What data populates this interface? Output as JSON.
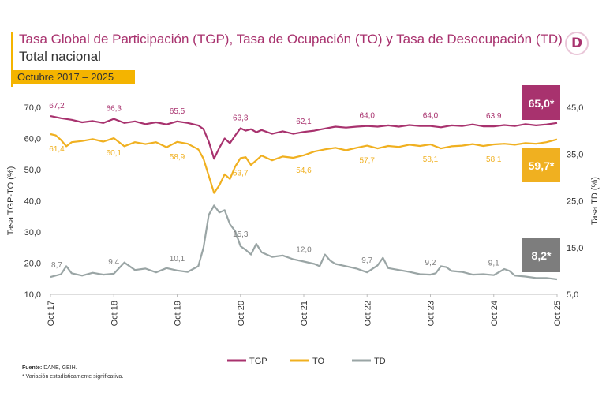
{
  "header": {
    "title_part1": "Tasa Global de Participación (TGP),",
    "title_part2": "Tasa de Ocupación (TO) y Tasa de Desocupación (TD)",
    "subtitle": "Total nacional",
    "period": "Octubre 2017 – 2025",
    "logo_letter": "D"
  },
  "colors": {
    "tgp": "#a8326e",
    "to": "#f0b020",
    "td": "#9aa5a5",
    "td_label": "#7d7d7d"
  },
  "chart_data": {
    "type": "line",
    "x_tick_labels": [
      "Oct 17",
      "Oct 18",
      "Oct 19",
      "Oct 20",
      "Oct 21",
      "Oct 22",
      "Oct 23",
      "Oct 24",
      "Oct 25"
    ],
    "x_tick_months": [
      0,
      12,
      24,
      36,
      48,
      60,
      72,
      84,
      96
    ],
    "ylabel_left": "Tasa TGP-TO (%)",
    "ylabel_right": "Tasa TD (%)",
    "ylim_left": [
      10,
      70
    ],
    "ylim_right": [
      5,
      45
    ],
    "yticks_left": [
      "10,0",
      "20,0",
      "30,0",
      "40,0",
      "50,0",
      "60,0",
      "70,0"
    ],
    "yticks_right": [
      "5,0",
      "15,0",
      "25,0",
      "35,0",
      "45,0"
    ],
    "series": [
      {
        "key": "tgp",
        "name": "TGP",
        "axis": "left",
        "points": [
          [
            0,
            67.2
          ],
          [
            2,
            66.5
          ],
          [
            4,
            66.0
          ],
          [
            6,
            65.2
          ],
          [
            8,
            65.6
          ],
          [
            10,
            65.0
          ],
          [
            12,
            66.3
          ],
          [
            14,
            65.0
          ],
          [
            16,
            65.5
          ],
          [
            18,
            64.6
          ],
          [
            20,
            65.2
          ],
          [
            22,
            64.5
          ],
          [
            24,
            65.5
          ],
          [
            26,
            65.0
          ],
          [
            28,
            64.2
          ],
          [
            29,
            63.0
          ],
          [
            30,
            59.0
          ],
          [
            31,
            53.5
          ],
          [
            32,
            57.0
          ],
          [
            33,
            60.0
          ],
          [
            34,
            58.5
          ],
          [
            35,
            61.0
          ],
          [
            36,
            63.3
          ],
          [
            37,
            62.5
          ],
          [
            38,
            63.0
          ],
          [
            39,
            62.0
          ],
          [
            40,
            62.7
          ],
          [
            42,
            61.5
          ],
          [
            44,
            62.3
          ],
          [
            46,
            61.5
          ],
          [
            48,
            62.1
          ],
          [
            50,
            62.5
          ],
          [
            52,
            63.2
          ],
          [
            54,
            63.8
          ],
          [
            56,
            63.5
          ],
          [
            58,
            63.8
          ],
          [
            60,
            64.0
          ],
          [
            62,
            63.8
          ],
          [
            64,
            64.2
          ],
          [
            66,
            63.8
          ],
          [
            68,
            64.3
          ],
          [
            70,
            64.0
          ],
          [
            72,
            64.0
          ],
          [
            74,
            63.6
          ],
          [
            76,
            64.2
          ],
          [
            78,
            64.0
          ],
          [
            80,
            64.5
          ],
          [
            82,
            63.9
          ],
          [
            84,
            63.9
          ],
          [
            86,
            64.3
          ],
          [
            88,
            64.0
          ],
          [
            90,
            64.6
          ],
          [
            92,
            64.2
          ],
          [
            94,
            64.5
          ],
          [
            96,
            65.0
          ]
        ]
      },
      {
        "key": "to",
        "name": "TO",
        "axis": "left",
        "points": [
          [
            0,
            61.4
          ],
          [
            1,
            61.0
          ],
          [
            2,
            59.5
          ],
          [
            3,
            57.5
          ],
          [
            4,
            58.8
          ],
          [
            6,
            59.2
          ],
          [
            8,
            59.8
          ],
          [
            10,
            59.0
          ],
          [
            12,
            60.1
          ],
          [
            14,
            57.5
          ],
          [
            16,
            58.8
          ],
          [
            18,
            58.2
          ],
          [
            20,
            58.8
          ],
          [
            22,
            57.2
          ],
          [
            24,
            58.9
          ],
          [
            26,
            58.3
          ],
          [
            28,
            56.5
          ],
          [
            29,
            53.5
          ],
          [
            30,
            48.0
          ],
          [
            31,
            42.5
          ],
          [
            32,
            45.0
          ],
          [
            33,
            48.5
          ],
          [
            34,
            47.0
          ],
          [
            35,
            51.0
          ],
          [
            36,
            53.7
          ],
          [
            37,
            54.0
          ],
          [
            38,
            51.5
          ],
          [
            39,
            53.0
          ],
          [
            40,
            54.5
          ],
          [
            42,
            53.0
          ],
          [
            44,
            54.2
          ],
          [
            46,
            53.8
          ],
          [
            48,
            54.6
          ],
          [
            50,
            55.8
          ],
          [
            52,
            56.5
          ],
          [
            54,
            57.0
          ],
          [
            56,
            56.2
          ],
          [
            58,
            57.0
          ],
          [
            60,
            57.7
          ],
          [
            62,
            56.8
          ],
          [
            64,
            57.6
          ],
          [
            66,
            57.3
          ],
          [
            68,
            58.0
          ],
          [
            70,
            57.6
          ],
          [
            72,
            58.1
          ],
          [
            74,
            56.8
          ],
          [
            76,
            57.5
          ],
          [
            78,
            57.7
          ],
          [
            80,
            58.2
          ],
          [
            82,
            57.6
          ],
          [
            84,
            58.1
          ],
          [
            86,
            58.3
          ],
          [
            88,
            58.0
          ],
          [
            90,
            58.5
          ],
          [
            92,
            58.3
          ],
          [
            94,
            58.8
          ],
          [
            96,
            59.7
          ]
        ]
      },
      {
        "key": "td",
        "name": "TD",
        "axis": "right",
        "points": [
          [
            0,
            8.7
          ],
          [
            2,
            9.3
          ],
          [
            3,
            11.0
          ],
          [
            4,
            9.5
          ],
          [
            6,
            9.0
          ],
          [
            8,
            9.6
          ],
          [
            10,
            9.2
          ],
          [
            12,
            9.4
          ],
          [
            14,
            11.8
          ],
          [
            16,
            10.2
          ],
          [
            18,
            10.5
          ],
          [
            20,
            9.7
          ],
          [
            22,
            10.6
          ],
          [
            24,
            10.1
          ],
          [
            26,
            9.8
          ],
          [
            28,
            11.0
          ],
          [
            29,
            15.0
          ],
          [
            30,
            22.0
          ],
          [
            31,
            24.0
          ],
          [
            32,
            22.5
          ],
          [
            33,
            23.0
          ],
          [
            34,
            20.0
          ],
          [
            35,
            18.5
          ],
          [
            36,
            15.3
          ],
          [
            37,
            14.5
          ],
          [
            38,
            13.5
          ],
          [
            39,
            15.8
          ],
          [
            40,
            14.0
          ],
          [
            42,
            13.0
          ],
          [
            44,
            13.3
          ],
          [
            46,
            12.5
          ],
          [
            48,
            12.0
          ],
          [
            50,
            11.5
          ],
          [
            51,
            11.0
          ],
          [
            52,
            13.5
          ],
          [
            53,
            12.2
          ],
          [
            54,
            11.5
          ],
          [
            56,
            11.0
          ],
          [
            58,
            10.5
          ],
          [
            60,
            9.7
          ],
          [
            62,
            11.2
          ],
          [
            63,
            12.8
          ],
          [
            64,
            10.6
          ],
          [
            66,
            10.2
          ],
          [
            68,
            9.8
          ],
          [
            70,
            9.3
          ],
          [
            72,
            9.2
          ],
          [
            73,
            9.5
          ],
          [
            74,
            11.0
          ],
          [
            75,
            10.8
          ],
          [
            76,
            10.0
          ],
          [
            78,
            9.8
          ],
          [
            80,
            9.2
          ],
          [
            82,
            9.3
          ],
          [
            84,
            9.1
          ],
          [
            86,
            10.4
          ],
          [
            87,
            10.0
          ],
          [
            88,
            9.0
          ],
          [
            90,
            8.8
          ],
          [
            92,
            8.5
          ],
          [
            94,
            8.5
          ],
          [
            96,
            8.2
          ]
        ]
      }
    ],
    "annotations": [
      {
        "series": "tgp",
        "x": 0,
        "text": "67,2"
      },
      {
        "series": "tgp",
        "x": 12,
        "text": "66,3"
      },
      {
        "series": "tgp",
        "x": 24,
        "text": "65,5"
      },
      {
        "series": "tgp",
        "x": 36,
        "text": "63,3"
      },
      {
        "series": "tgp",
        "x": 48,
        "text": "62,1"
      },
      {
        "series": "tgp",
        "x": 60,
        "text": "64,0"
      },
      {
        "series": "tgp",
        "x": 72,
        "text": "64,0"
      },
      {
        "series": "tgp",
        "x": 84,
        "text": "63,9"
      },
      {
        "series": "to",
        "x": 0,
        "text": "61,4"
      },
      {
        "series": "to",
        "x": 12,
        "text": "60,1"
      },
      {
        "series": "to",
        "x": 24,
        "text": "58,9"
      },
      {
        "series": "to",
        "x": 36,
        "text": "53,7"
      },
      {
        "series": "to",
        "x": 48,
        "text": "54,6"
      },
      {
        "series": "to",
        "x": 60,
        "text": "57,7"
      },
      {
        "series": "to",
        "x": 72,
        "text": "58,1"
      },
      {
        "series": "to",
        "x": 84,
        "text": "58,1"
      },
      {
        "series": "td",
        "x": 0,
        "text": "8,7"
      },
      {
        "series": "td",
        "x": 12,
        "text": "9,4"
      },
      {
        "series": "td",
        "x": 24,
        "text": "10,1"
      },
      {
        "series": "td",
        "x": 36,
        "text": "15,3"
      },
      {
        "series": "td",
        "x": 48,
        "text": "12,0"
      },
      {
        "series": "td",
        "x": 60,
        "text": "9,7"
      },
      {
        "series": "td",
        "x": 72,
        "text": "9,2"
      },
      {
        "series": "td",
        "x": 84,
        "text": "9,1"
      }
    ],
    "final_boxes": [
      {
        "series": "tgp",
        "text": "65,0*"
      },
      {
        "series": "to",
        "text": "59,7*"
      },
      {
        "series": "td",
        "text": "8,2*"
      }
    ],
    "legend": [
      "TGP",
      "TO",
      "TD"
    ],
    "legend_position": "bottom-center",
    "grid": false
  },
  "footer": {
    "source_label": "Fuente:",
    "source_text": "DANE, GEIH.",
    "note": "* Variación estadísticamente significativa."
  }
}
